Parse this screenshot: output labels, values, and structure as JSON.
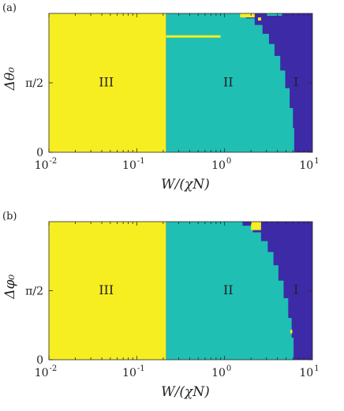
{
  "chart_data": [
    {
      "type": "heatmap",
      "panel_label": "(a)",
      "xlabel": "W/(χN)",
      "ylabel": "Δθ₀",
      "xscale": "log",
      "xlim": [
        0.01,
        10
      ],
      "ylim": [
        0,
        3.14159
      ],
      "xticks": [
        {
          "value": 0.01,
          "label_base": "10",
          "label_exp": "-2"
        },
        {
          "value": 0.1,
          "label_base": "10",
          "label_exp": "-1"
        },
        {
          "value": 1,
          "label_base": "10",
          "label_exp": "0"
        },
        {
          "value": 10,
          "label_base": "10",
          "label_exp": "1"
        }
      ],
      "yticks": [
        {
          "value": 0,
          "label": "0"
        },
        {
          "value": 1.5708,
          "label": "π/2"
        }
      ],
      "grid": false,
      "regions": [
        {
          "name": "III",
          "color": "#f7ee22",
          "label_at": [
            0.045,
            1.6
          ]
        },
        {
          "name": "II",
          "color": "#1fbfb4",
          "label_at": [
            1.1,
            1.6
          ]
        },
        {
          "name": "I",
          "color": "#3d2aa6",
          "label_at": [
            6.5,
            1.6
          ]
        }
      ],
      "boundary_III_II": {
        "x": 0.215
      },
      "boundary_II_I": {
        "x": [
          1.35,
          1.75,
          2.2,
          2.7,
          3.2,
          3.7,
          4.3,
          4.9,
          5.5,
          6.0,
          6.2
        ],
        "y": [
          3.14159,
          3.03,
          2.88,
          2.68,
          2.45,
          2.18,
          1.85,
          1.45,
          1.0,
          0.55,
          0.0
        ]
      },
      "anomalies": [
        {
          "kind": "line",
          "color": "#f7ee22",
          "x": [
            0.215,
            0.9
          ],
          "y": [
            2.62,
            2.62
          ]
        },
        {
          "kind": "blob",
          "color": "#f7ee22",
          "x": [
            1.5,
            2.2
          ],
          "y": [
            3.05,
            3.14159
          ]
        },
        {
          "kind": "blob",
          "color": "#1fbfb4",
          "x": [
            3.0,
            4.5
          ],
          "y": [
            3.1,
            3.14159
          ]
        },
        {
          "kind": "blob",
          "color": "#f7ee22",
          "x": [
            2.4,
            2.6
          ],
          "y": [
            2.98,
            3.05
          ]
        }
      ]
    },
    {
      "type": "heatmap",
      "panel_label": "(b)",
      "xlabel": "W/(χN)",
      "ylabel": "Δφ₀",
      "xscale": "log",
      "xlim": [
        0.01,
        10
      ],
      "ylim": [
        0,
        3.14159
      ],
      "xticks": [
        {
          "value": 0.01,
          "label_base": "10",
          "label_exp": "-2"
        },
        {
          "value": 0.1,
          "label_base": "10",
          "label_exp": "-1"
        },
        {
          "value": 1,
          "label_base": "10",
          "label_exp": "0"
        },
        {
          "value": 10,
          "label_base": "10",
          "label_exp": "1"
        }
      ],
      "yticks": [
        {
          "value": 0,
          "label": "0"
        },
        {
          "value": 1.5708,
          "label": "π/2"
        }
      ],
      "grid": false,
      "regions": [
        {
          "name": "III",
          "color": "#f7ee22",
          "label_at": [
            0.045,
            1.6
          ]
        },
        {
          "name": "II",
          "color": "#1fbfb4",
          "label_at": [
            1.1,
            1.6
          ]
        },
        {
          "name": "I",
          "color": "#3d2aa6",
          "label_at": [
            6.5,
            1.6
          ]
        }
      ],
      "boundary_III_II": {
        "x": 0.215
      },
      "boundary_II_I": {
        "x": [
          1.15,
          1.6,
          2.1,
          2.6,
          3.1,
          3.6,
          4.1,
          4.7,
          5.3,
          5.8,
          6.1
        ],
        "y": [
          3.14159,
          3.05,
          2.9,
          2.7,
          2.45,
          2.15,
          1.8,
          1.4,
          0.95,
          0.5,
          0.0
        ]
      },
      "anomalies": [
        {
          "kind": "blob",
          "color": "#f7ee22",
          "x": [
            2.0,
            2.6
          ],
          "y": [
            2.95,
            3.14159
          ]
        },
        {
          "kind": "blob",
          "color": "#f7ee22",
          "x": [
            5.6,
            5.9
          ],
          "y": [
            0.6,
            0.68
          ]
        }
      ]
    }
  ]
}
